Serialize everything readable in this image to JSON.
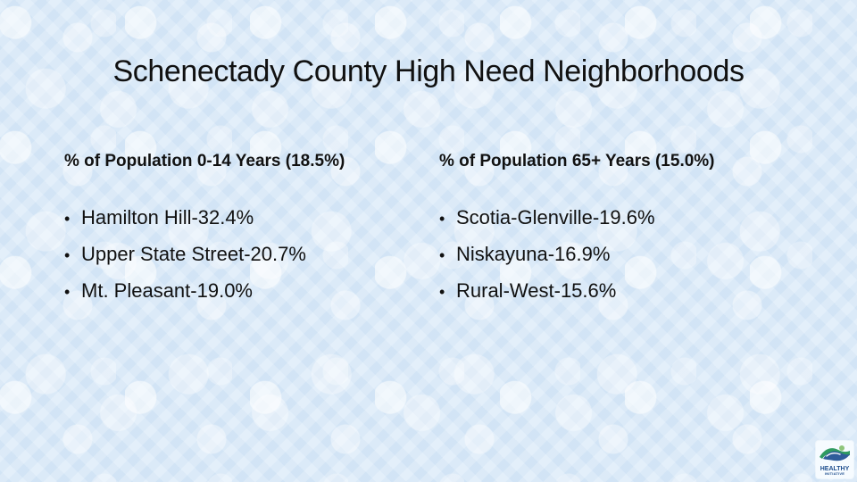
{
  "slide": {
    "title": "Schenectady County High Need Neighborhoods",
    "left_column": {
      "heading": "% of Population 0-14 Years (18.5%)",
      "items": [
        "Hamilton Hill-32.4%",
        "Upper State Street-20.7%",
        "Mt. Pleasant-19.0%"
      ]
    },
    "right_column": {
      "heading": "% of Population 65+ Years (15.0%)",
      "items": [
        "Scotia-Glenville-19.6%",
        "Niskayuna-16.9%",
        "Rural-West-15.6%"
      ]
    },
    "logo": {
      "icon": "handshake-icon",
      "main_text": "HEALTHY",
      "sub_text": "INITIATIVE"
    }
  }
}
